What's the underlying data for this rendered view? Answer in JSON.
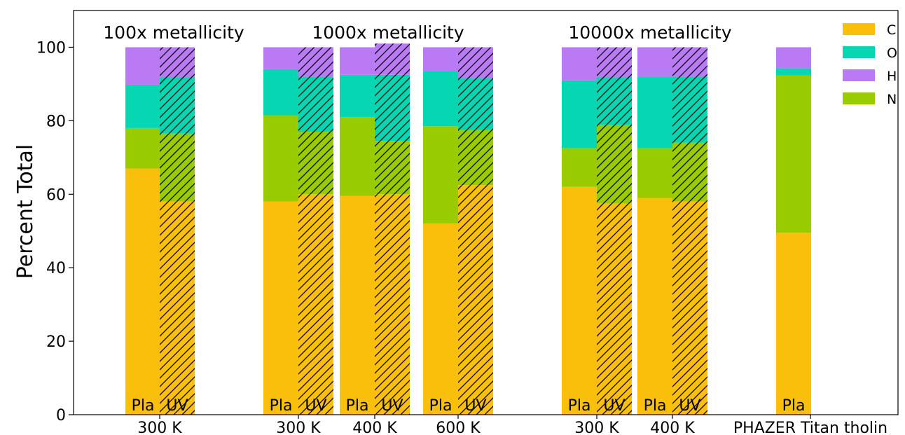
{
  "chart_data": {
    "type": "bar",
    "stacked": true,
    "ylabel": "Percent Total",
    "xlabel": "",
    "ylim": [
      0,
      110
    ],
    "yticks": [
      0,
      20,
      40,
      60,
      80,
      100
    ],
    "grid": false,
    "legend_position": "top-right",
    "series": [
      {
        "name": "C",
        "color": "#f9bf0a"
      },
      {
        "name": "O",
        "color": "#06d6b1"
      },
      {
        "name": "H",
        "color": "#b97af4"
      },
      {
        "name": "N",
        "color": "#99cc00"
      }
    ],
    "stack_order": [
      "C",
      "N",
      "O",
      "H"
    ],
    "hatch_note": "UV bars drawn with diagonal hatching",
    "group_titles": [
      "100x metallicity",
      "1000x metallicity",
      "10000x metallicity"
    ],
    "temperature_labels": [
      "300 K",
      "300 K",
      "400 K",
      "600 K",
      "300 K",
      "400 K",
      "PHAZER Titan tholin"
    ],
    "bars": [
      {
        "label": "Pla",
        "group": "100x metallicity",
        "temperature": "300 K",
        "hatched": false,
        "C": 67.0,
        "N": 11.0,
        "O": 11.8,
        "H": 10.2
      },
      {
        "label": "UV",
        "group": "100x metallicity",
        "temperature": "300 K",
        "hatched": true,
        "C": 58.0,
        "N": 18.5,
        "O": 15.3,
        "H": 8.2
      },
      {
        "label": "Pla",
        "group": "1000x metallicity",
        "temperature": "300 K",
        "hatched": false,
        "C": 58.0,
        "N": 23.5,
        "O": 12.5,
        "H": 6.0
      },
      {
        "label": "UV",
        "group": "1000x metallicity",
        "temperature": "300 K",
        "hatched": true,
        "C": 60.0,
        "N": 17.0,
        "O": 15.0,
        "H": 8.0
      },
      {
        "label": "Pla",
        "group": "1000x metallicity",
        "temperature": "400 K",
        "hatched": false,
        "C": 59.5,
        "N": 21.5,
        "O": 11.5,
        "H": 7.5
      },
      {
        "label": "UV",
        "group": "1000x metallicity",
        "temperature": "400 K",
        "hatched": true,
        "C": 60.0,
        "N": 14.5,
        "O": 18.0,
        "H": 8.5
      },
      {
        "label": "Pla",
        "group": "1000x metallicity",
        "temperature": "600 K",
        "hatched": false,
        "C": 52.0,
        "N": 26.5,
        "O": 15.0,
        "H": 6.5
      },
      {
        "label": "UV",
        "group": "1000x metallicity",
        "temperature": "600 K",
        "hatched": true,
        "C": 62.5,
        "N": 15.0,
        "O": 14.0,
        "H": 8.5
      },
      {
        "label": "Pla",
        "group": "10000x metallicity",
        "temperature": "300 K",
        "hatched": false,
        "C": 62.0,
        "N": 10.5,
        "O": 18.5,
        "H": 9.0
      },
      {
        "label": "UV",
        "group": "10000x metallicity",
        "temperature": "300 K",
        "hatched": true,
        "C": 57.5,
        "N": 21.3,
        "O": 13.0,
        "H": 8.2
      },
      {
        "label": "Pla",
        "group": "10000x metallicity",
        "temperature": "400 K",
        "hatched": false,
        "C": 59.0,
        "N": 13.5,
        "O": 19.5,
        "H": 8.0
      },
      {
        "label": "UV",
        "group": "10000x metallicity",
        "temperature": "400 K",
        "hatched": true,
        "C": 58.0,
        "N": 16.0,
        "O": 18.0,
        "H": 8.0
      },
      {
        "label": "Pla",
        "group": "PHAZER Titan tholin",
        "temperature": "PHAZER Titan tholin",
        "hatched": false,
        "C": 49.5,
        "N": 42.8,
        "O": 2.0,
        "H": 5.7
      }
    ]
  }
}
